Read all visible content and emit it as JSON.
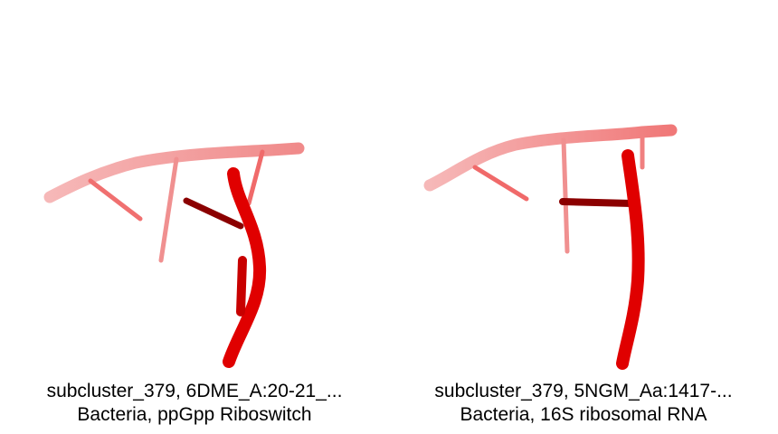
{
  "panels": [
    {
      "caption_line1": "subcluster_379, 6DME_A:20-21_...",
      "caption_line2": "Bacteria, ppGpp Riboswitch"
    },
    {
      "caption_line1": "subcluster_379, 5NGM_Aa:1417-...",
      "caption_line2": "Bacteria, 16S ribosomal RNA"
    }
  ],
  "colors": {
    "backbone_near": "#e00000",
    "backbone_far": "#f4a0a0",
    "base_dark": "#8b0000"
  }
}
